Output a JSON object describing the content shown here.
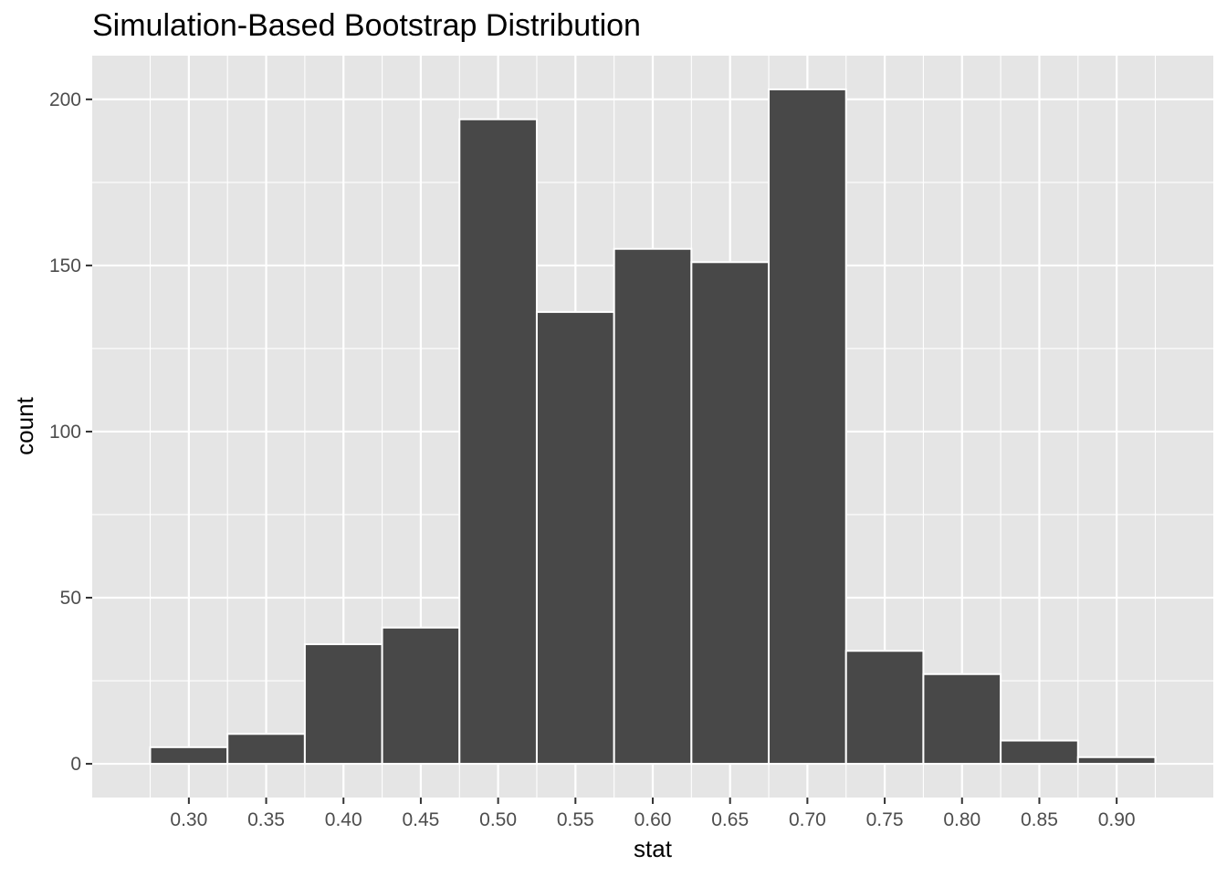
{
  "chart_data": {
    "type": "bar",
    "title": "Simulation-Based Bootstrap Distribution",
    "xlabel": "stat",
    "ylabel": "count",
    "bin_width": 0.05,
    "bins": [
      {
        "center": 0.3,
        "count": 5
      },
      {
        "center": 0.35,
        "count": 9
      },
      {
        "center": 0.4,
        "count": 36
      },
      {
        "center": 0.45,
        "count": 41
      },
      {
        "center": 0.5,
        "count": 194
      },
      {
        "center": 0.55,
        "count": 136
      },
      {
        "center": 0.6,
        "count": 155
      },
      {
        "center": 0.65,
        "count": 151
      },
      {
        "center": 0.7,
        "count": 203
      },
      {
        "center": 0.75,
        "count": 34
      },
      {
        "center": 0.8,
        "count": 27
      },
      {
        "center": 0.85,
        "count": 7
      },
      {
        "center": 0.9,
        "count": 2
      }
    ],
    "xlim": [
      0.2375,
      0.9625
    ],
    "ylim": [
      -10.15,
      213.15
    ],
    "x_ticks": [
      "0.30",
      "0.35",
      "0.40",
      "0.45",
      "0.50",
      "0.55",
      "0.60",
      "0.65",
      "0.70",
      "0.75",
      "0.80",
      "0.85",
      "0.90"
    ],
    "x_tick_values": [
      0.3,
      0.35,
      0.4,
      0.45,
      0.5,
      0.55,
      0.6,
      0.65,
      0.7,
      0.75,
      0.8,
      0.85,
      0.9
    ],
    "y_ticks": [
      "0",
      "50",
      "100",
      "150",
      "200"
    ],
    "y_tick_values": [
      0,
      50,
      100,
      150,
      200
    ],
    "grid": true,
    "colors": {
      "panel_background": "#e5e5e5",
      "gridline": "#ffffff",
      "bar_fill": "#484848",
      "bar_outline": "#ffffff",
      "tick_text": "#4d4d4d",
      "tick_mark": "#333333"
    }
  }
}
